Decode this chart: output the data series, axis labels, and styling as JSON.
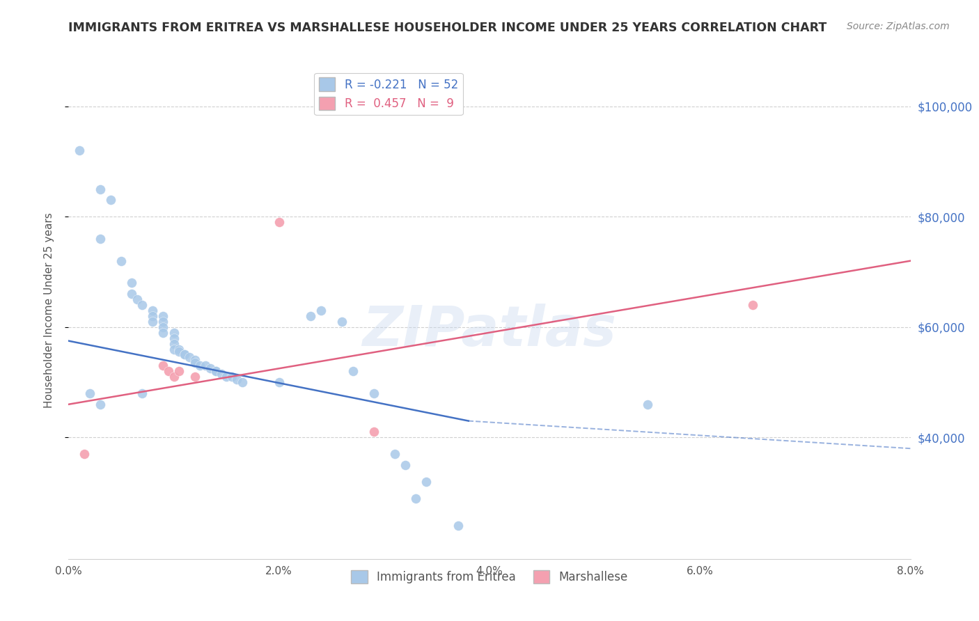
{
  "title": "IMMIGRANTS FROM ERITREA VS MARSHALLESE HOUSEHOLDER INCOME UNDER 25 YEARS CORRELATION CHART",
  "source": "Source: ZipAtlas.com",
  "ylabel": "Householder Income Under 25 years",
  "xlim": [
    0.0,
    0.08
  ],
  "ylim": [
    18000,
    108000
  ],
  "yticks": [
    40000,
    60000,
    80000,
    100000
  ],
  "ytick_labels": [
    "$40,000",
    "$60,000",
    "$80,000",
    "$100,000"
  ],
  "legend_blue_label": "R = -0.221   N = 52",
  "legend_pink_label": "R =  0.457   N =  9",
  "blue_color": "#a8c8e8",
  "pink_color": "#f4a0b0",
  "blue_line_color": "#4472c4",
  "pink_line_color": "#e06080",
  "watermark": "ZIPatlas",
  "blue_scatter": [
    [
      0.001,
      92000
    ],
    [
      0.003,
      85000
    ],
    [
      0.004,
      83000
    ],
    [
      0.003,
      76000
    ],
    [
      0.005,
      72000
    ],
    [
      0.006,
      68000
    ],
    [
      0.006,
      66000
    ],
    [
      0.0065,
      65000
    ],
    [
      0.007,
      64000
    ],
    [
      0.008,
      63000
    ],
    [
      0.008,
      62000
    ],
    [
      0.008,
      61000
    ],
    [
      0.009,
      62000
    ],
    [
      0.009,
      61000
    ],
    [
      0.009,
      60000
    ],
    [
      0.009,
      59000
    ],
    [
      0.01,
      59000
    ],
    [
      0.01,
      58000
    ],
    [
      0.01,
      57000
    ],
    [
      0.01,
      56000
    ],
    [
      0.0105,
      56000
    ],
    [
      0.0105,
      55500
    ],
    [
      0.011,
      55000
    ],
    [
      0.011,
      55000
    ],
    [
      0.0115,
      54500
    ],
    [
      0.012,
      54000
    ],
    [
      0.012,
      53500
    ],
    [
      0.0125,
      53000
    ],
    [
      0.013,
      53000
    ],
    [
      0.0135,
      52500
    ],
    [
      0.014,
      52000
    ],
    [
      0.014,
      52000
    ],
    [
      0.0145,
      51500
    ],
    [
      0.015,
      51000
    ],
    [
      0.0155,
      51000
    ],
    [
      0.016,
      50500
    ],
    [
      0.0165,
      50000
    ],
    [
      0.002,
      48000
    ],
    [
      0.003,
      46000
    ],
    [
      0.007,
      48000
    ],
    [
      0.02,
      50000
    ],
    [
      0.023,
      62000
    ],
    [
      0.024,
      63000
    ],
    [
      0.026,
      61000
    ],
    [
      0.027,
      52000
    ],
    [
      0.029,
      48000
    ],
    [
      0.031,
      37000
    ],
    [
      0.032,
      35000
    ],
    [
      0.034,
      32000
    ],
    [
      0.033,
      29000
    ],
    [
      0.037,
      24000
    ],
    [
      0.055,
      46000
    ]
  ],
  "pink_scatter": [
    [
      0.0015,
      37000
    ],
    [
      0.009,
      53000
    ],
    [
      0.0095,
      52000
    ],
    [
      0.01,
      51000
    ],
    [
      0.0105,
      52000
    ],
    [
      0.012,
      51000
    ],
    [
      0.02,
      79000
    ],
    [
      0.029,
      41000
    ],
    [
      0.065,
      64000
    ]
  ],
  "blue_trendline_solid": [
    [
      0.0,
      57500
    ],
    [
      0.038,
      43000
    ]
  ],
  "blue_trendline_dashed": [
    [
      0.038,
      43000
    ],
    [
      0.08,
      38000
    ]
  ],
  "pink_trendline": [
    [
      0.0,
      46000
    ],
    [
      0.08,
      72000
    ]
  ],
  "grid_color": "#d0d0d0",
  "background_color": "#ffffff",
  "title_color": "#333333",
  "right_tick_color": "#4472c4"
}
